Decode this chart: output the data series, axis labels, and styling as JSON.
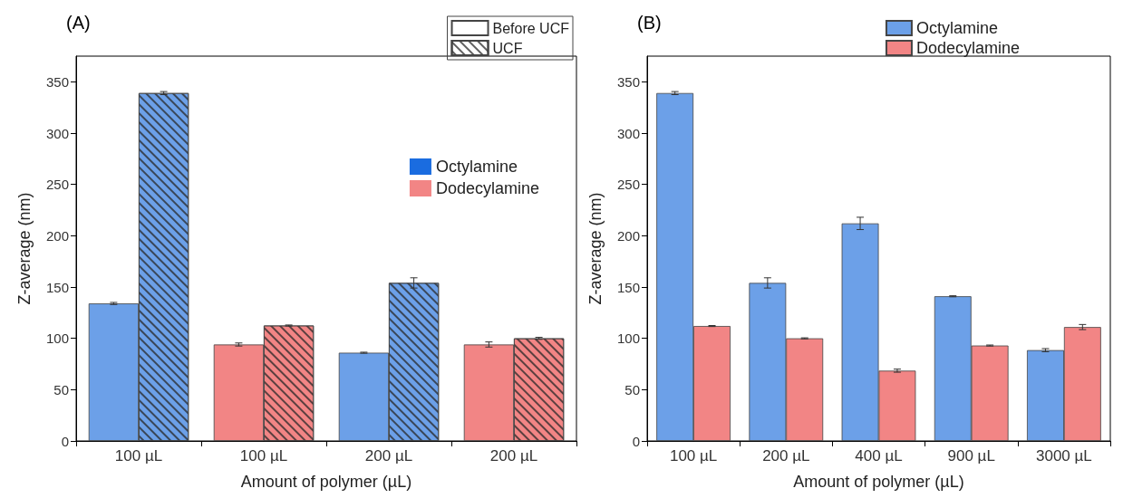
{
  "chart_data": [
    {
      "type": "bar",
      "title": "(A)",
      "xlabel": "Amount of polymer (µL)",
      "ylabel": "Z-average (nm)",
      "categories": [
        "100 µL",
        "100 µL",
        "200 µL",
        "200 µL"
      ],
      "series": [
        {
          "name": "Before UCF",
          "colors": [
            "#6ca0e8",
            "#f28585",
            "#6ca0e8",
            "#f28585"
          ],
          "values": [
            134,
            94,
            86,
            94
          ],
          "errors": [
            1,
            1.5,
            0.5,
            2.5
          ]
        },
        {
          "name": "UCF",
          "colors": [
            "#6ca0e8",
            "#f28585",
            "#6ca0e8",
            "#f28585"
          ],
          "values": [
            339,
            112.5,
            154,
            100
          ],
          "errors": [
            1.5,
            0.5,
            5,
            1
          ]
        },
        {
          "name": "Octylamine",
          "color": "#1a6ce0",
          "values": [
            null,
            null,
            null,
            null
          ]
        },
        {
          "name": "Dodecylamine",
          "color": "#f28585",
          "values": [
            null,
            null,
            null,
            null
          ]
        }
      ],
      "ylim": [
        0,
        375
      ],
      "yticks": [
        0,
        50,
        100,
        150,
        200,
        250,
        300,
        350
      ],
      "grid": false,
      "legend": "top right"
    },
    {
      "type": "bar",
      "title": "(B)",
      "xlabel": "Amount of polymer (µL)",
      "ylabel": "Z-average (nm)",
      "categories": [
        "100 µL",
        "200 µL",
        "400 µL",
        "900 µL",
        "3000 µL"
      ],
      "series": [
        {
          "name": "Octylamine",
          "color": "#6ca0e8",
          "values": [
            339,
            154,
            212,
            141,
            88.5
          ],
          "errors": [
            1.5,
            5,
            6,
            0.5,
            1.5
          ]
        },
        {
          "name": "Dodecylamine",
          "color": "#f28585",
          "values": [
            112,
            100,
            68.5,
            93,
            111
          ],
          "errors": [
            0.5,
            0.5,
            1.5,
            0.5,
            2.5
          ]
        }
      ],
      "ylim": [
        0,
        375
      ],
      "yticks": [
        0,
        50,
        100,
        150,
        200,
        250,
        300,
        350
      ],
      "grid": false,
      "legend": "top right"
    }
  ]
}
